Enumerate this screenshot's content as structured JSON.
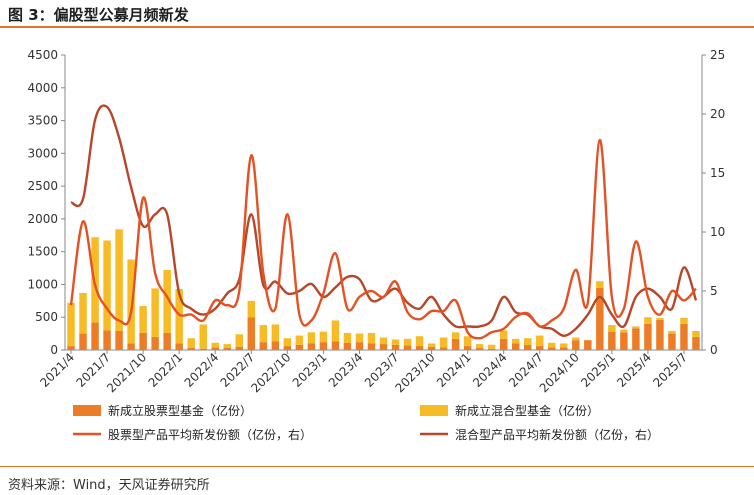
{
  "header": {
    "title": "图 3：偏股型公募月频新发"
  },
  "footer": {
    "source": "资料来源：Wind，天风证券研究所"
  },
  "colors": {
    "stock_bar": "#ec7c26",
    "mixed_bar": "#f7bb25",
    "stock_line": "#e45224",
    "mixed_line": "#b84628",
    "accent_rule": "#e8742a"
  },
  "chart_data": {
    "type": "bar",
    "x": [
      "2021/4",
      "2021/5",
      "2021/6",
      "2021/7",
      "2021/8",
      "2021/9",
      "2021/10",
      "2021/11",
      "2021/12",
      "2022/1",
      "2022/2",
      "2022/3",
      "2022/4",
      "2022/5",
      "2022/6",
      "2022/7",
      "2022/8",
      "2022/9",
      "2022/10",
      "2022/11",
      "2022/12",
      "2023/1",
      "2023/2",
      "2023/3",
      "2023/4",
      "2023/5",
      "2023/6",
      "2023/7",
      "2023/8",
      "2023/9",
      "2023/10",
      "2023/11",
      "2023/12",
      "2024/1",
      "2024/2",
      "2024/3",
      "2024/4",
      "2024/5",
      "2024/6",
      "2024/7",
      "2024/8",
      "2024/9",
      "2024/10",
      "2024/11",
      "2024/12",
      "2025/1",
      "2025/2",
      "2025/3",
      "2025/4",
      "2025/5",
      "2025/6",
      "2025/7",
      "2025/8"
    ],
    "x_tick_labels": [
      "2021/4",
      "2021/7",
      "2021/10",
      "2022/1",
      "2022/4",
      "2022/7",
      "2022/10",
      "2023/1",
      "2023/4",
      "2023/7",
      "2023/10",
      "2024/1",
      "2024/4",
      "2024/7",
      "2024/10",
      "2025/1",
      "2025/4",
      "2025/7"
    ],
    "y_left": {
      "min": 0,
      "max": 4500,
      "ticks": [
        0,
        500,
        1000,
        1500,
        2000,
        2500,
        3000,
        3500,
        4000,
        4500
      ]
    },
    "y_right": {
      "min": 0,
      "max": 25,
      "ticks": [
        0,
        5,
        10,
        15,
        20,
        25
      ]
    },
    "series": [
      {
        "name": "新成立股票型基金（亿份）",
        "kind": "bar",
        "axis": "left",
        "stack": "s",
        "values": [
          60,
          250,
          420,
          300,
          290,
          100,
          260,
          200,
          260,
          100,
          30,
          20,
          40,
          30,
          50,
          500,
          120,
          130,
          60,
          80,
          100,
          120,
          130,
          110,
          120,
          100,
          90,
          80,
          70,
          60,
          50,
          40,
          170,
          60,
          30,
          20,
          170,
          100,
          80,
          60,
          40,
          40,
          150,
          150,
          950,
          280,
          270,
          330,
          400,
          460,
          250,
          400,
          200
        ]
      },
      {
        "name": "新成立混合型基金（亿份）",
        "kind": "bar",
        "axis": "left",
        "stack": "s",
        "values": [
          660,
          620,
          1300,
          1370,
          1550,
          1280,
          410,
          740,
          960,
          830,
          150,
          370,
          70,
          60,
          190,
          250,
          260,
          260,
          120,
          140,
          170,
          160,
          320,
          150,
          130,
          160,
          100,
          80,
          100,
          150,
          50,
          150,
          100,
          150,
          60,
          60,
          130,
          70,
          100,
          160,
          70,
          60,
          40,
          0,
          100,
          100,
          40,
          30,
          100,
          30,
          40,
          90,
          90
        ]
      },
      {
        "name": "股票型产品平均新发份额（亿份，右）",
        "kind": "line",
        "axis": "right",
        "values": [
          3.8,
          10.9,
          5.5,
          3.5,
          2.5,
          3.2,
          12.9,
          6.5,
          4.5,
          3.0,
          3.0,
          2.5,
          4.2,
          3.8,
          5.0,
          16.5,
          6.5,
          3.5,
          11.5,
          3.0,
          2.5,
          4.8,
          8.2,
          3.5,
          4.5,
          5.0,
          4.5,
          5.8,
          3.2,
          2.6,
          3.3,
          3.3,
          4.2,
          1.5,
          1.0,
          1.5,
          1.8,
          2.8,
          3.1,
          2.0,
          2.5,
          3.5,
          6.8,
          4.0,
          17.8,
          4.5,
          3.5,
          9.2,
          4.5,
          3.0,
          5.0,
          4.2,
          5.2
        ]
      },
      {
        "name": "混合型产品平均新发份额（亿份，右）",
        "kind": "line",
        "axis": "right",
        "values": [
          12.5,
          12.8,
          19.5,
          20.6,
          18.0,
          13.8,
          10.5,
          11.5,
          11.5,
          4.8,
          3.5,
          3.0,
          3.5,
          4.8,
          6.0,
          11.5,
          5.5,
          5.8,
          4.8,
          5.0,
          5.6,
          4.5,
          5.3,
          6.2,
          6.0,
          4.2,
          4.5,
          5.2,
          4.0,
          3.5,
          4.5,
          3.0,
          2.0,
          2.0,
          2.0,
          2.5,
          4.5,
          3.2,
          3.0,
          2.0,
          1.8,
          1.2,
          1.8,
          3.0,
          4.5,
          3.0,
          2.0,
          4.5,
          5.2,
          4.5,
          3.5,
          7.0,
          4.2
        ]
      }
    ],
    "legend_position": "bottom",
    "grid": false
  }
}
